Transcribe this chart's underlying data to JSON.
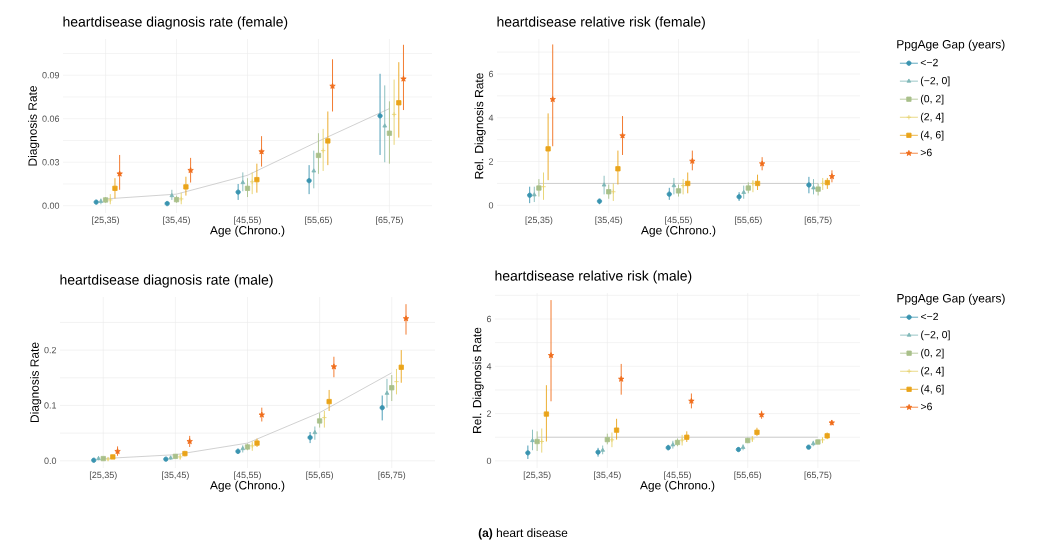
{
  "chart_data": [
    {
      "type": "scatter",
      "title": "heartdisease diagnosis rate (female)",
      "xlabel": "Age (Chrono.)",
      "ylabel": "Diagnosis Rate",
      "categories": [
        "[25,35)",
        "[35,45)",
        "[45,55)",
        "[55,65)",
        "[65,75)"
      ],
      "ylim": [
        -0.005,
        0.115
      ],
      "yticks": [
        {
          "value": 0,
          "label": "0.00"
        },
        {
          "value": 0.015,
          "label": null
        },
        0.03,
        {
          "value": 0.045,
          "label": null
        },
        0.06,
        {
          "value": 0.075,
          "label": null
        },
        0.09,
        {
          "value": 0.105,
          "label": null
        }
      ],
      "grid": true,
      "series": [
        {
          "type": "line",
          "color": "#bdbdbd",
          "marker": "none",
          "values": [
            0.0047,
            0.008,
            0.021,
            0.0445,
            0.067
          ]
        },
        {
          "color": "#3a94b0",
          "marker": "circle",
          "values": [
            0.0025,
            0.0015,
            0.0094,
            0.0173,
            0.062
          ],
          "errors": [
            [
              0.001,
              0.004
            ],
            [
              0.0005,
              0.0025
            ],
            [
              0.004,
              0.015
            ],
            [
              0.008,
              0.028
            ],
            [
              0.035,
              0.091
            ]
          ]
        },
        {
          "color": "#7fb8b8",
          "marker": "triangle",
          "values": [
            0.003,
            0.007,
            0.016,
            0.024,
            0.055
          ],
          "errors": [
            [
              0.001,
              0.005
            ],
            [
              0.004,
              0.011
            ],
            [
              0.01,
              0.023
            ],
            [
              0.012,
              0.038
            ],
            [
              0.03,
              0.083
            ]
          ]
        },
        {
          "color": "#a9c08a",
          "marker": "square",
          "values": [
            0.004,
            0.0042,
            0.012,
            0.0347,
            0.05
          ],
          "errors": [
            [
              0.002,
              0.006
            ],
            [
              0.002,
              0.007
            ],
            [
              0.006,
              0.019
            ],
            [
              0.022,
              0.05
            ],
            [
              0.029,
              0.072
            ]
          ]
        },
        {
          "color": "#e6d16a",
          "marker": "cross",
          "values": [
            0.004,
            0.0047,
            0.0165,
            0.038,
            0.063
          ],
          "errors": [
            [
              0.001,
              0.008
            ],
            [
              0.001,
              0.009
            ],
            [
              0.008,
              0.023
            ],
            [
              0.024,
              0.053
            ],
            [
              0.042,
              0.087
            ]
          ]
        },
        {
          "color": "#eaa41a",
          "marker": "square",
          "values": [
            0.012,
            0.013,
            0.018,
            0.0447,
            0.071
          ],
          "errors": [
            [
              0.005,
              0.019
            ],
            [
              0.007,
              0.02
            ],
            [
              0.009,
              0.029
            ],
            [
              0.028,
              0.065
            ],
            [
              0.047,
              0.099
            ]
          ]
        },
        {
          "color": "#f06c1a",
          "marker": "star",
          "values": [
            0.022,
            0.0244,
            0.0373,
            0.0825,
            0.0875
          ],
          "errors": [
            [
              0.011,
              0.035
            ],
            [
              0.016,
              0.033
            ],
            [
              0.027,
              0.048
            ],
            [
              0.065,
              0.101
            ],
            [
              0.066,
              0.111
            ]
          ]
        }
      ]
    },
    {
      "type": "scatter",
      "title": "heartdisease relative risk (female)",
      "xlabel": "Age (Chrono.)",
      "ylabel": "Rel. Diagnosis Rate",
      "categories": [
        "[25,35)",
        "[35,45)",
        "[45,55)",
        "[55,65)",
        "[65,75)"
      ],
      "ylim": [
        -0.35,
        7.6
      ],
      "yticks": [
        0,
        {
          "value": 1,
          "label": null
        },
        2,
        {
          "value": 3,
          "label": null
        },
        4,
        {
          "value": 5,
          "label": null
        },
        6,
        {
          "value": 7,
          "label": null
        }
      ],
      "grid": true,
      "legend": "right",
      "legend_title": "PpgAge Gap (years)",
      "ref_lines": [
        {
          "axis": "y",
          "value": 1,
          "color": "#bdbdbd"
        }
      ],
      "series": [
        {
          "name": "<−2",
          "color": "#3a94b0",
          "marker": "circle",
          "values": [
            0.46,
            0.19,
            0.51,
            0.39,
            0.93
          ],
          "errors": [
            [
              0.1,
              0.85
            ],
            [
              0.05,
              0.3
            ],
            [
              0.25,
              0.8
            ],
            [
              0.2,
              0.6
            ],
            [
              0.55,
              1.3
            ]
          ]
        },
        {
          "name": "(−2, 0]",
          "color": "#7fb8b8",
          "marker": "triangle",
          "values": [
            0.48,
            0.93,
            0.9,
            0.59,
            0.8
          ],
          "errors": [
            [
              0.15,
              0.85
            ],
            [
              0.5,
              1.35
            ],
            [
              0.5,
              1.25
            ],
            [
              0.3,
              0.9
            ],
            [
              0.5,
              1.2
            ]
          ]
        },
        {
          "name": "(0, 2]",
          "color": "#a9c08a",
          "marker": "square",
          "values": [
            0.79,
            0.62,
            0.66,
            0.79,
            0.74
          ],
          "errors": [
            [
              0.4,
              1.2
            ],
            [
              0.3,
              0.95
            ],
            [
              0.4,
              0.95
            ],
            [
              0.55,
              1.05
            ],
            [
              0.45,
              1.0
            ]
          ]
        },
        {
          "name": "(2, 4]",
          "color": "#e6d16a",
          "marker": "cross",
          "values": [
            0.85,
            0.62,
            0.9,
            1.0,
            1.0
          ],
          "errors": [
            [
              0.25,
              1.5
            ],
            [
              0.2,
              1.0
            ],
            [
              0.5,
              1.2
            ],
            [
              0.6,
              1.15
            ],
            [
              0.7,
              1.25
            ]
          ]
        },
        {
          "name": "(4, 6]",
          "color": "#eaa41a",
          "marker": "square",
          "values": [
            2.58,
            1.67,
            1.0,
            1.0,
            1.04
          ],
          "errors": [
            [
              1.15,
              4.2
            ],
            [
              0.95,
              2.5
            ],
            [
              0.55,
              1.5
            ],
            [
              0.7,
              1.4
            ],
            [
              0.75,
              1.25
            ]
          ]
        },
        {
          "name": ">6",
          "color": "#f06c1a",
          "marker": "star",
          "values": [
            4.84,
            3.18,
            2.02,
            1.9,
            1.32
          ],
          "errors": [
            [
              2.7,
              7.35
            ],
            [
              2.3,
              4.08
            ],
            [
              1.6,
              2.5
            ],
            [
              1.6,
              2.2
            ],
            [
              1.05,
              1.6
            ]
          ]
        }
      ]
    },
    {
      "type": "scatter",
      "title": "heartdisease diagnosis rate (male)",
      "xlabel": "Age (Chrono.)",
      "ylabel": "Diagnosis Rate",
      "categories": [
        "[25,35)",
        "[35,45)",
        "[45,55)",
        "[55,65)",
        "[65,75)"
      ],
      "ylim": [
        -0.013,
        0.296
      ],
      "yticks": [
        {
          "value": 0,
          "label": "0.0"
        },
        {
          "value": 0.05,
          "label": null
        },
        0.1,
        {
          "value": 0.15,
          "label": null
        },
        0.2,
        {
          "value": 0.25,
          "label": null
        }
      ],
      "grid": true,
      "series": [
        {
          "type": "line",
          "color": "#bdbdbd",
          "marker": "none",
          "values": [
            0.004,
            0.011,
            0.032,
            0.087,
            0.159
          ]
        },
        {
          "color": "#3a94b0",
          "marker": "circle",
          "values": [
            0.001,
            0.003,
            0.017,
            0.042,
            0.096
          ],
          "errors": [
            null,
            [
              0.001,
              0.005
            ],
            [
              0.013,
              0.022
            ],
            [
              0.032,
              0.052
            ],
            [
              0.073,
              0.118
            ]
          ]
        },
        {
          "color": "#7fb8b8",
          "marker": "triangle",
          "values": [
            0.004,
            0.005,
            0.022,
            0.051,
            0.122
          ],
          "errors": [
            [
              0.001,
              0.008
            ],
            [
              0.002,
              0.009
            ],
            [
              0.015,
              0.028
            ],
            [
              0.038,
              0.062
            ],
            [
              0.096,
              0.148
            ]
          ]
        },
        {
          "color": "#a9c08a",
          "marker": "square",
          "values": [
            0.004,
            0.008,
            0.025,
            0.072,
            0.132
          ],
          "errors": [
            [
              0.001,
              0.007
            ],
            [
              0.005,
              0.011
            ],
            [
              0.019,
              0.031
            ],
            [
              0.06,
              0.086
            ],
            [
              0.108,
              0.155
            ]
          ]
        },
        {
          "color": "#e6d16a",
          "marker": "cross",
          "values": [
            0.003,
            0.007,
            0.027,
            0.078,
            0.143
          ],
          "errors": [
            [
              0,
              0.006
            ],
            [
              0.002,
              0.012
            ],
            [
              0.018,
              0.035
            ],
            [
              0.06,
              0.09
            ],
            [
              0.12,
              0.166
            ]
          ]
        },
        {
          "color": "#eaa41a",
          "marker": "square",
          "values": [
            0.007,
            0.013,
            0.032,
            0.107,
            0.169
          ],
          "errors": [
            [
              0.004,
              0.011
            ],
            [
              0.008,
              0.018
            ],
            [
              0.025,
              0.04
            ],
            [
              0.09,
              0.128
            ],
            [
              0.141,
              0.2
            ]
          ]
        },
        {
          "color": "#f06c1a",
          "marker": "star",
          "values": [
            0.017,
            0.035,
            0.083,
            0.17,
            0.257
          ],
          "errors": [
            [
              0.009,
              0.026
            ],
            [
              0.025,
              0.045
            ],
            [
              0.071,
              0.096
            ],
            [
              0.151,
              0.188
            ],
            [
              0.228,
              0.283
            ]
          ]
        }
      ]
    },
    {
      "type": "scatter",
      "title": "heartdisease relative risk (male)",
      "xlabel": "Age (Chrono.)",
      "ylabel": "Rel. Diagnosis Rate",
      "categories": [
        "[25,35)",
        "[35,45)",
        "[45,55)",
        "[55,65)",
        "[65,75)"
      ],
      "ylim": [
        -0.3,
        7.1
      ],
      "yticks": [
        0,
        {
          "value": 1,
          "label": null
        },
        2,
        {
          "value": 3,
          "label": null
        },
        4,
        {
          "value": 5,
          "label": null
        },
        6,
        {
          "value": 7,
          "label": null
        }
      ],
      "grid": true,
      "legend": "right",
      "legend_title": "PpgAge Gap (years)",
      "ref_lines": [
        {
          "axis": "y",
          "value": 1,
          "color": "#bdbdbd"
        }
      ],
      "annotations": [
        "**(a)** heart disease"
      ],
      "series": [
        {
          "name": "<−2",
          "color": "#3a94b0",
          "marker": "circle",
          "values": [
            0.34,
            0.37,
            0.56,
            0.48,
            0.58
          ],
          "errors": [
            [
              0.08,
              0.65
            ],
            [
              0.18,
              0.55
            ],
            [
              0.45,
              0.68
            ],
            [
              0.4,
              0.58
            ],
            [
              0.5,
              0.66
            ]
          ]
        },
        {
          "name": "(−2, 0]",
          "color": "#7fb8b8",
          "marker": "triangle",
          "values": [
            0.86,
            0.45,
            0.68,
            0.57,
            0.73
          ],
          "errors": [
            [
              0.45,
              1.32
            ],
            [
              0.28,
              0.65
            ],
            [
              0.52,
              0.85
            ],
            [
              0.45,
              0.7
            ],
            [
              0.62,
              0.85
            ]
          ]
        },
        {
          "name": "(0, 2]",
          "color": "#a9c08a",
          "marker": "square",
          "values": [
            0.82,
            0.9,
            0.78,
            0.86,
            0.8
          ],
          "errors": [
            [
              0.42,
              1.25
            ],
            [
              0.7,
              1.15
            ],
            [
              0.62,
              0.95
            ],
            [
              0.75,
              0.98
            ],
            [
              0.7,
              0.9
            ]
          ]
        },
        {
          "name": "(2, 4]",
          "color": "#e6d16a",
          "marker": "cross",
          "values": [
            0.82,
            0.89,
            0.88,
            0.93,
            0.89
          ],
          "errors": [
            [
              0.35,
              1.37
            ],
            [
              0.58,
              1.2
            ],
            [
              0.65,
              1.1
            ],
            [
              0.8,
              1.05
            ],
            [
              0.75,
              1.0
            ]
          ]
        },
        {
          "name": "(4, 6]",
          "color": "#eaa41a",
          "marker": "square",
          "values": [
            1.98,
            1.3,
            1.0,
            1.21,
            1.06
          ],
          "errors": [
            [
              0.82,
              3.2
            ],
            [
              0.9,
              1.78
            ],
            [
              0.8,
              1.25
            ],
            [
              1.05,
              1.4
            ],
            [
              0.92,
              1.2
            ]
          ]
        },
        {
          "name": ">6",
          "color": "#f06c1a",
          "marker": "star",
          "values": [
            4.46,
            3.46,
            2.53,
            1.95,
            1.61
          ],
          "errors": [
            [
              2.52,
              6.8
            ],
            [
              2.8,
              4.1
            ],
            [
              2.22,
              2.85
            ],
            [
              1.78,
              2.12
            ],
            [
              1.5,
              1.72
            ]
          ]
        }
      ]
    }
  ]
}
